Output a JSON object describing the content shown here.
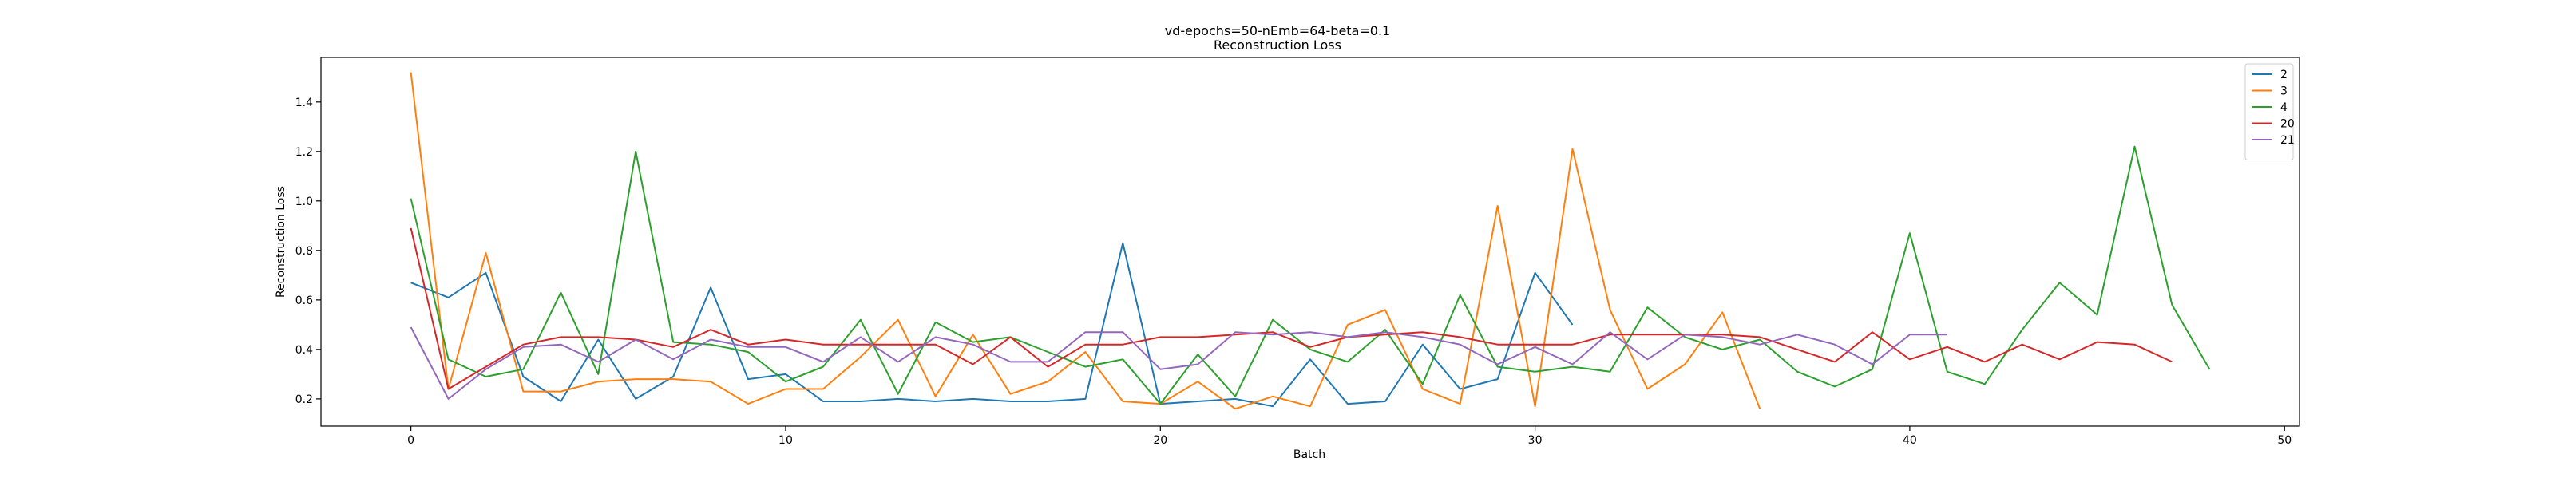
{
  "chart_data": {
    "type": "line",
    "title": "vd-epochs=50-nEmb=64-beta=0.1",
    "subtitle": "Reconstruction Loss",
    "xlabel": "Batch",
    "ylabel": "Reconstruction Loss",
    "xlim": [
      -2.4,
      50.4
    ],
    "ylim": [
      0.09,
      1.58
    ],
    "x_ticks": [
      0,
      10,
      20,
      30,
      40,
      50
    ],
    "y_ticks": [
      0.2,
      0.4,
      0.6,
      0.8,
      1.0,
      1.2,
      1.4
    ],
    "legend_position": "top-right",
    "grid": false,
    "series": [
      {
        "name": "2",
        "color": "#1f77b4",
        "values": [
          0.67,
          0.61,
          0.71,
          0.29,
          0.19,
          0.44,
          0.2,
          0.29,
          0.65,
          0.28,
          0.3,
          0.19,
          0.19,
          0.2,
          0.19,
          0.2,
          0.19,
          0.19,
          0.2,
          0.83,
          0.18,
          0.19,
          0.2,
          0.17,
          0.36,
          0.18,
          0.19,
          0.42,
          0.24,
          0.28,
          0.71,
          0.5
        ]
      },
      {
        "name": "3",
        "color": "#ff7f0e",
        "values": [
          1.52,
          0.24,
          0.79,
          0.23,
          0.23,
          0.27,
          0.28,
          0.28,
          0.27,
          0.18,
          0.24,
          0.24,
          0.37,
          0.52,
          0.21,
          0.46,
          0.22,
          0.27,
          0.39,
          0.19,
          0.18,
          0.27,
          0.16,
          0.21,
          0.17,
          0.5,
          0.56,
          0.24,
          0.18,
          0.98,
          0.17,
          1.21,
          0.56,
          0.24,
          0.34,
          0.55,
          0.16
        ]
      },
      {
        "name": "4",
        "color": "#2ca02c",
        "values": [
          1.01,
          0.36,
          0.29,
          0.32,
          0.63,
          0.3,
          1.2,
          0.43,
          0.42,
          0.39,
          0.27,
          0.33,
          0.52,
          0.22,
          0.51,
          0.43,
          0.45,
          0.39,
          0.33,
          0.36,
          0.18,
          0.38,
          0.21,
          0.52,
          0.4,
          0.35,
          0.48,
          0.26,
          0.62,
          0.33,
          0.31,
          0.33,
          0.31,
          0.57,
          0.45,
          0.4,
          0.44,
          0.31,
          0.25,
          0.32,
          0.87,
          0.31,
          0.26,
          0.48,
          0.67,
          0.54,
          1.22,
          0.58,
          0.32
        ]
      },
      {
        "name": "20",
        "color": "#d62728",
        "values": [
          0.89,
          0.24,
          0.33,
          0.42,
          0.45,
          0.45,
          0.44,
          0.41,
          0.48,
          0.42,
          0.44,
          0.42,
          0.42,
          0.42,
          0.42,
          0.34,
          0.45,
          0.33,
          0.42,
          0.42,
          0.45,
          0.45,
          0.46,
          0.47,
          0.41,
          0.45,
          0.46,
          0.47,
          0.45,
          0.42,
          0.42,
          0.42,
          0.46,
          0.46,
          0.46,
          0.46,
          0.45,
          0.4,
          0.35,
          0.47,
          0.36,
          0.41,
          0.35,
          0.42,
          0.36,
          0.43,
          0.42,
          0.35
        ]
      },
      {
        "name": "21",
        "color": "#9467bd",
        "values": [
          0.49,
          0.2,
          0.32,
          0.41,
          0.42,
          0.35,
          0.44,
          0.36,
          0.44,
          0.41,
          0.41,
          0.35,
          0.45,
          0.35,
          0.45,
          0.42,
          0.35,
          0.35,
          0.47,
          0.47,
          0.32,
          0.34,
          0.47,
          0.46,
          0.47,
          0.45,
          0.47,
          0.45,
          0.42,
          0.34,
          0.41,
          0.34,
          0.47,
          0.36,
          0.46,
          0.45,
          0.42,
          0.46,
          0.42,
          0.34,
          0.46,
          0.46
        ]
      }
    ]
  }
}
